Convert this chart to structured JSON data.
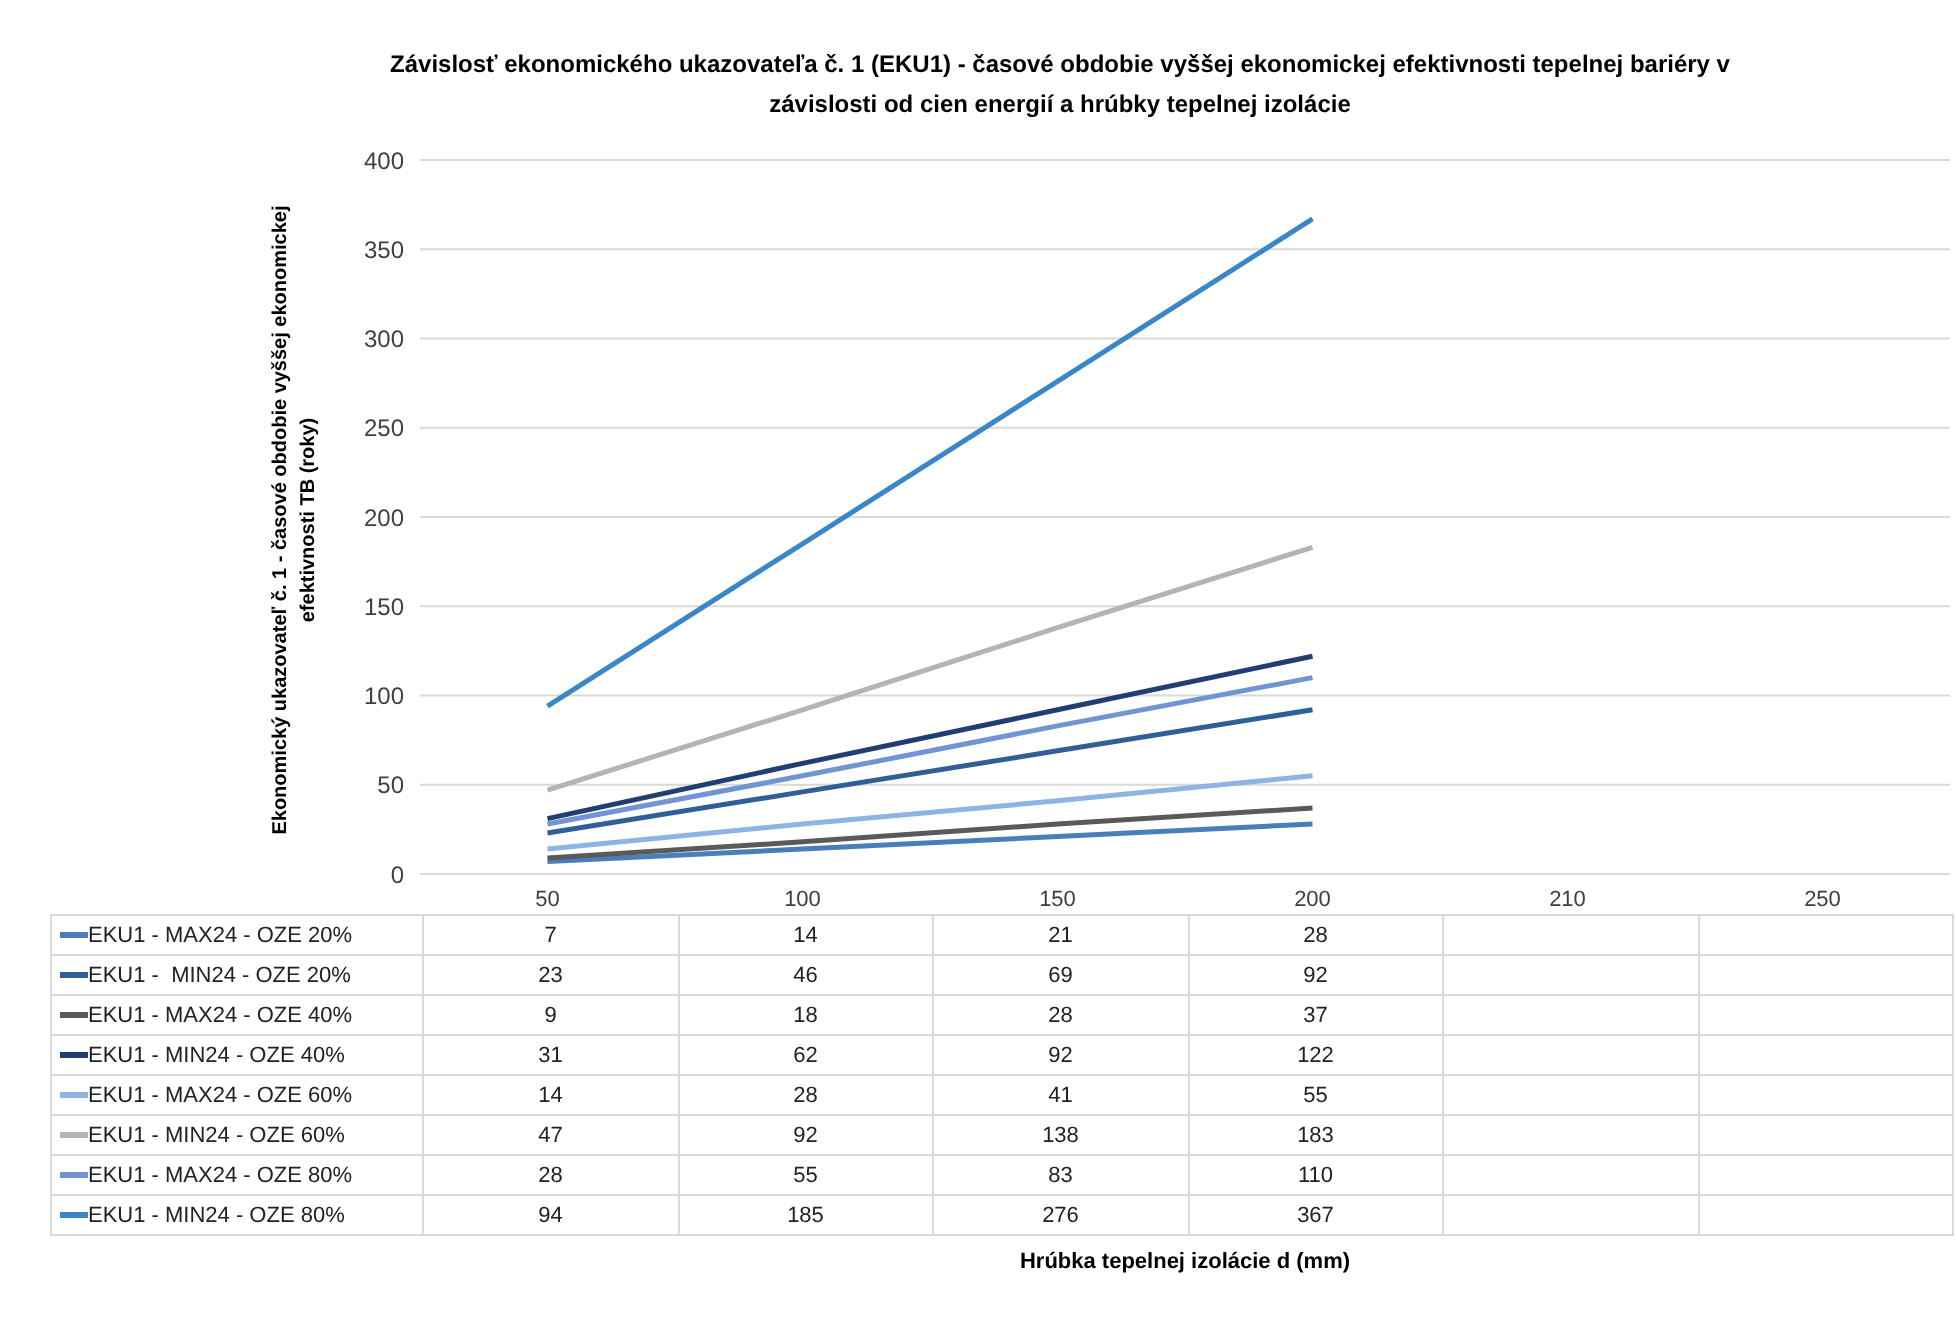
{
  "chart_data": {
    "type": "line",
    "title": "Závislosť ekonomického ukazovateľa č. 1 (EKU1) - časové obdobie vyššej ekonomickej efektivnosti tepelnej bariéry v závislosti od cien energií a hrúbky tepelnej izolácie",
    "annotations": [
      "Hrúbka tepelnej izolácie d (mm)"
    ],
    "ylabel": "Ekonomický ukazovateľ č. 1 - časové obdobie vyššej ekonomickej efektivnosti TB (roky)",
    "categories": [
      "50",
      "100",
      "150",
      "200",
      "210",
      "250"
    ],
    "series": [
      {
        "name": "EKU1 - MAX24 - OZE 20%",
        "color": "#4a7ebb",
        "values": [
          7,
          14,
          21,
          28,
          null,
          null
        ]
      },
      {
        "name": "EKU1 -  MIN24 - OZE 20%",
        "color": "#2e5f96",
        "values": [
          23,
          46,
          69,
          92,
          null,
          null
        ]
      },
      {
        "name": "EKU1 - MAX24 - OZE 40%",
        "color": "#5a5a5a",
        "values": [
          9,
          18,
          28,
          37,
          null,
          null
        ]
      },
      {
        "name": "EKU1 - MIN24 - OZE 40%",
        "color": "#1f3f73",
        "values": [
          31,
          62,
          92,
          122,
          null,
          null
        ]
      },
      {
        "name": "EKU1 - MAX24 - OZE 60%",
        "color": "#8db4e2",
        "values": [
          14,
          28,
          41,
          55,
          null,
          null
        ]
      },
      {
        "name": "EKU1 - MIN24 - OZE 60%",
        "color": "#b4b4b4",
        "values": [
          47,
          92,
          138,
          183,
          null,
          null
        ]
      },
      {
        "name": "EKU1 - MAX24 - OZE 80%",
        "color": "#7094d4",
        "values": [
          28,
          55,
          83,
          110,
          null,
          null
        ]
      },
      {
        "name": "EKU1 - MIN24 - OZE 80%",
        "color": "#3a87c8",
        "values": [
          94,
          185,
          276,
          367,
          null,
          null
        ]
      }
    ],
    "ylim": [
      0,
      400
    ],
    "yticks": [
      0,
      50,
      100,
      150,
      200,
      250,
      300,
      350,
      400
    ],
    "grid": "y",
    "legend": "bottom",
    "data_labels": true
  }
}
